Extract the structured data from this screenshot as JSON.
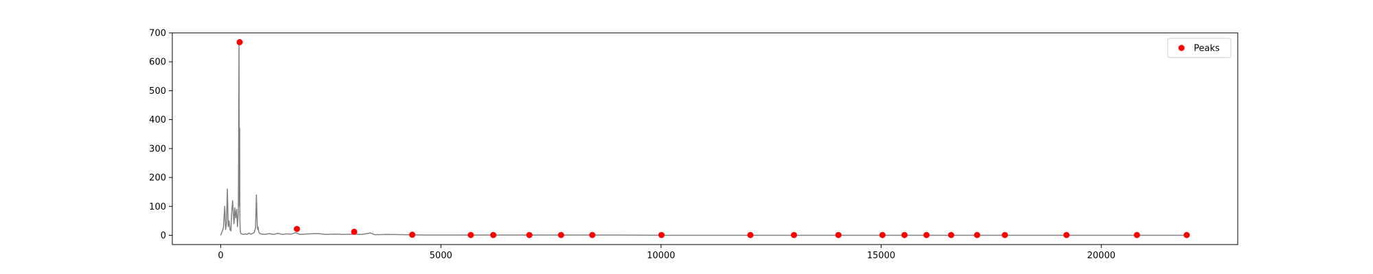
{
  "chart_data": {
    "type": "line",
    "title": "",
    "xlabel": "",
    "ylabel": "",
    "xlim": [
      -1100,
      23100
    ],
    "ylim": [
      -32,
      700
    ],
    "xticks": [
      0,
      5000,
      10000,
      15000,
      20000
    ],
    "yticks": [
      0,
      100,
      200,
      300,
      400,
      500,
      600,
      700
    ],
    "grid": false,
    "legend": {
      "placement": "top-right",
      "entries": [
        "Peaks"
      ]
    },
    "colors": {
      "line": "#808080",
      "peaks": "#ff0000",
      "axes": "#000000"
    },
    "series": [
      {
        "x": [
          0,
          60,
          90,
          110,
          130,
          150,
          170,
          190,
          210,
          230,
          250,
          270,
          300,
          320,
          340,
          360,
          380,
          400,
          415,
          425,
          430,
          435,
          440,
          445,
          450,
          455,
          460,
          470,
          490,
          520,
          560,
          600,
          640,
          680,
          720,
          760,
          790,
          810,
          830,
          840,
          850,
          860,
          870,
          880,
          900,
          950,
          1000,
          1100,
          1200,
          1300,
          1400,
          1500,
          1600,
          1700,
          1800,
          2000,
          2200,
          2400,
          2600,
          2800,
          3000,
          3200,
          3400,
          3500,
          3800,
          4200,
          4600,
          5000,
          6000,
          7000,
          8000,
          9000,
          10000,
          11000,
          12000,
          13000,
          14000,
          15000,
          16000,
          17000,
          18000,
          19000,
          20000,
          21000,
          21950
        ],
        "values": [
          0,
          25,
          100,
          20,
          40,
          160,
          30,
          50,
          20,
          15,
          80,
          120,
          40,
          95,
          60,
          90,
          30,
          80,
          668,
          100,
          370,
          50,
          30,
          15,
          10,
          8,
          6,
          5,
          4,
          3,
          5,
          3,
          8,
          4,
          6,
          10,
          25,
          140,
          30,
          20,
          28,
          15,
          10,
          8,
          5,
          4,
          3,
          6,
          3,
          7,
          3,
          5,
          4,
          9,
          3,
          5,
          6,
          3,
          4,
          3,
          4,
          3,
          8,
          2,
          3,
          2,
          1,
          1,
          1,
          1,
          1,
          1,
          0,
          0,
          0,
          0,
          0,
          0,
          0,
          0,
          0,
          0,
          0,
          0,
          0
        ]
      },
      {
        "name": "Peaks",
        "x": [
          430,
          1730,
          3030,
          4350,
          5680,
          6190,
          7010,
          7730,
          8440,
          10010,
          12030,
          13020,
          14030,
          15030,
          15530,
          16030,
          16590,
          17180,
          17810,
          19210,
          20810,
          21940
        ],
        "values": [
          668,
          22,
          12,
          2,
          1,
          1,
          1,
          1,
          1,
          1,
          1,
          1,
          1,
          1,
          1,
          1,
          1,
          1,
          1,
          1,
          1,
          1
        ]
      }
    ]
  }
}
